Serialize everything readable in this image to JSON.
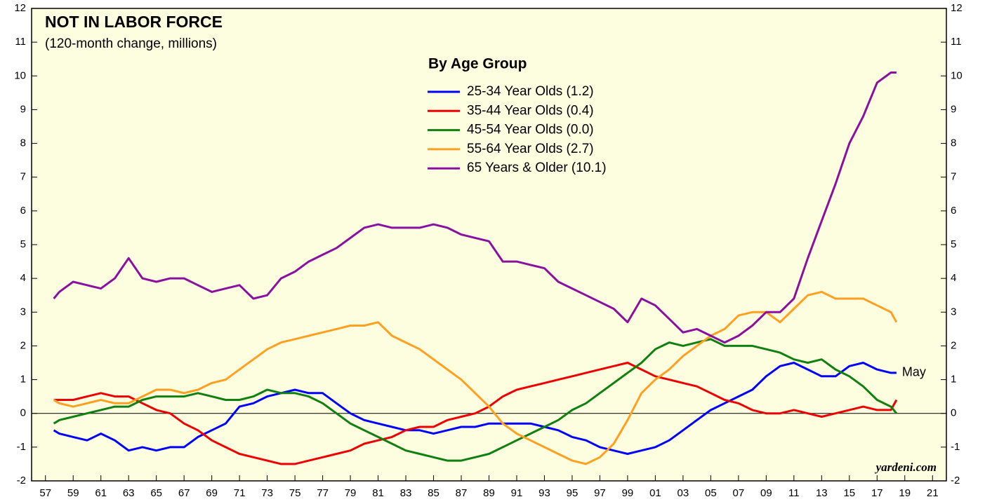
{
  "chart_data": {
    "type": "line",
    "title": "NOT IN LABOR FORCE",
    "subtitle": "(120-month change, millions)",
    "legend_title": "By Age Group",
    "annotations": [
      "May",
      "yardeni.com"
    ],
    "x": [
      1957.6,
      1958,
      1959,
      1960,
      1961,
      1962,
      1963,
      1964,
      1965,
      1966,
      1967,
      1968,
      1969,
      1970,
      1971,
      1972,
      1973,
      1974,
      1975,
      1976,
      1977,
      1978,
      1979,
      1980,
      1981,
      1982,
      1983,
      1984,
      1985,
      1986,
      1987,
      1988,
      1989,
      1990,
      1991,
      1992,
      1993,
      1994,
      1995,
      1996,
      1997,
      1998,
      1999,
      2000,
      2001,
      2002,
      2003,
      2004,
      2005,
      2006,
      2007,
      2008,
      2009,
      2010,
      2011,
      2012,
      2013,
      2014,
      2015,
      2016,
      2017,
      2018,
      2018.4
    ],
    "series": [
      {
        "name": "25-34 Year Olds (1.2)",
        "color": "#0000ff",
        "values": [
          -0.5,
          -0.6,
          -0.7,
          -0.8,
          -0.6,
          -0.8,
          -1.1,
          -1.0,
          -1.1,
          -1.0,
          -1.0,
          -0.7,
          -0.5,
          -0.3,
          0.2,
          0.3,
          0.5,
          0.6,
          0.7,
          0.6,
          0.6,
          0.3,
          0.0,
          -0.2,
          -0.3,
          -0.4,
          -0.5,
          -0.5,
          -0.6,
          -0.5,
          -0.4,
          -0.4,
          -0.3,
          -0.3,
          -0.3,
          -0.3,
          -0.4,
          -0.5,
          -0.7,
          -0.8,
          -1.0,
          -1.1,
          -1.2,
          -1.1,
          -1.0,
          -0.8,
          -0.5,
          -0.2,
          0.1,
          0.3,
          0.5,
          0.7,
          1.1,
          1.4,
          1.5,
          1.3,
          1.1,
          1.1,
          1.4,
          1.5,
          1.3,
          1.2,
          1.2
        ]
      },
      {
        "name": "35-44 Year Olds (0.4)",
        "color": "#ee0000",
        "values": [
          0.4,
          0.4,
          0.4,
          0.5,
          0.6,
          0.5,
          0.5,
          0.3,
          0.1,
          0.0,
          -0.3,
          -0.5,
          -0.8,
          -1.0,
          -1.2,
          -1.3,
          -1.4,
          -1.5,
          -1.5,
          -1.4,
          -1.3,
          -1.2,
          -1.1,
          -0.9,
          -0.8,
          -0.7,
          -0.5,
          -0.4,
          -0.4,
          -0.2,
          -0.1,
          0.0,
          0.2,
          0.5,
          0.7,
          0.8,
          0.9,
          1.0,
          1.1,
          1.2,
          1.3,
          1.4,
          1.5,
          1.3,
          1.1,
          1.0,
          0.9,
          0.8,
          0.6,
          0.4,
          0.3,
          0.1,
          0.0,
          0.0,
          0.1,
          0.0,
          -0.1,
          0.0,
          0.1,
          0.2,
          0.1,
          0.1,
          0.4
        ]
      },
      {
        "name": "45-54 Year Olds (0.0)",
        "color": "#108010",
        "values": [
          -0.3,
          -0.2,
          -0.1,
          0.0,
          0.1,
          0.2,
          0.2,
          0.4,
          0.5,
          0.5,
          0.5,
          0.6,
          0.5,
          0.4,
          0.4,
          0.5,
          0.7,
          0.6,
          0.6,
          0.5,
          0.3,
          0.0,
          -0.3,
          -0.5,
          -0.7,
          -0.9,
          -1.1,
          -1.2,
          -1.3,
          -1.4,
          -1.4,
          -1.3,
          -1.2,
          -1.0,
          -0.8,
          -0.6,
          -0.4,
          -0.2,
          0.1,
          0.3,
          0.6,
          0.9,
          1.2,
          1.5,
          1.9,
          2.1,
          2.0,
          2.1,
          2.2,
          2.0,
          2.0,
          2.0,
          1.9,
          1.8,
          1.6,
          1.5,
          1.6,
          1.3,
          1.1,
          0.8,
          0.4,
          0.2,
          0.0
        ]
      },
      {
        "name": "55-64 Year Olds (2.7)",
        "color": "#ffa020",
        "values": [
          0.4,
          0.3,
          0.2,
          0.3,
          0.4,
          0.3,
          0.3,
          0.5,
          0.7,
          0.7,
          0.6,
          0.7,
          0.9,
          1.0,
          1.3,
          1.6,
          1.9,
          2.1,
          2.2,
          2.3,
          2.4,
          2.5,
          2.6,
          2.6,
          2.7,
          2.3,
          2.1,
          1.9,
          1.6,
          1.3,
          1.0,
          0.6,
          0.2,
          -0.3,
          -0.6,
          -0.8,
          -1.0,
          -1.2,
          -1.4,
          -1.5,
          -1.3,
          -0.9,
          -0.2,
          0.6,
          1.0,
          1.3,
          1.7,
          2.0,
          2.3,
          2.5,
          2.9,
          3.0,
          3.0,
          2.7,
          3.1,
          3.5,
          3.6,
          3.4,
          3.4,
          3.4,
          3.2,
          3.0,
          2.7
        ]
      },
      {
        "name": "65 Years & Older (10.1)",
        "color": "#8a10a0",
        "values": [
          3.4,
          3.6,
          3.9,
          3.8,
          3.7,
          4.0,
          4.6,
          4.0,
          3.9,
          4.0,
          4.0,
          3.8,
          3.6,
          3.7,
          3.8,
          3.4,
          3.5,
          4.0,
          4.2,
          4.5,
          4.7,
          4.9,
          5.2,
          5.5,
          5.6,
          5.5,
          5.5,
          5.5,
          5.6,
          5.5,
          5.3,
          5.2,
          5.1,
          4.5,
          4.5,
          4.4,
          4.3,
          3.9,
          3.7,
          3.5,
          3.3,
          3.1,
          2.7,
          3.4,
          3.2,
          2.8,
          2.4,
          2.5,
          2.3,
          2.1,
          2.3,
          2.6,
          3.0,
          3.0,
          3.4,
          4.6,
          5.7,
          6.8,
          8.0,
          8.8,
          9.8,
          10.1,
          10.1
        ]
      }
    ],
    "xlim": [
      1956,
      2022
    ],
    "xticks": [
      {
        "value": 1957,
        "label": "57"
      },
      {
        "value": 1959,
        "label": "59"
      },
      {
        "value": 1961,
        "label": "61"
      },
      {
        "value": 1963,
        "label": "63"
      },
      {
        "value": 1965,
        "label": "65"
      },
      {
        "value": 1967,
        "label": "67"
      },
      {
        "value": 1969,
        "label": "69"
      },
      {
        "value": 1971,
        "label": "71"
      },
      {
        "value": 1973,
        "label": "73"
      },
      {
        "value": 1975,
        "label": "75"
      },
      {
        "value": 1977,
        "label": "77"
      },
      {
        "value": 1979,
        "label": "79"
      },
      {
        "value": 1981,
        "label": "81"
      },
      {
        "value": 1983,
        "label": "83"
      },
      {
        "value": 1985,
        "label": "85"
      },
      {
        "value": 1987,
        "label": "87"
      },
      {
        "value": 1989,
        "label": "89"
      },
      {
        "value": 1991,
        "label": "91"
      },
      {
        "value": 1993,
        "label": "93"
      },
      {
        "value": 1995,
        "label": "95"
      },
      {
        "value": 1997,
        "label": "97"
      },
      {
        "value": 1999,
        "label": "99"
      },
      {
        "value": 2001,
        "label": "01"
      },
      {
        "value": 2003,
        "label": "03"
      },
      {
        "value": 2005,
        "label": "05"
      },
      {
        "value": 2007,
        "label": "07"
      },
      {
        "value": 2009,
        "label": "09"
      },
      {
        "value": 2011,
        "label": "11"
      },
      {
        "value": 2013,
        "label": "13"
      },
      {
        "value": 2015,
        "label": "15"
      },
      {
        "value": 2017,
        "label": "17"
      },
      {
        "value": 2019,
        "label": "19"
      },
      {
        "value": 2021,
        "label": "21"
      }
    ],
    "ylim": [
      -2,
      12
    ],
    "yticks": [
      -2,
      -1,
      0,
      1,
      2,
      3,
      4,
      5,
      6,
      7,
      8,
      9,
      10,
      11,
      12
    ],
    "zero_line": true
  }
}
